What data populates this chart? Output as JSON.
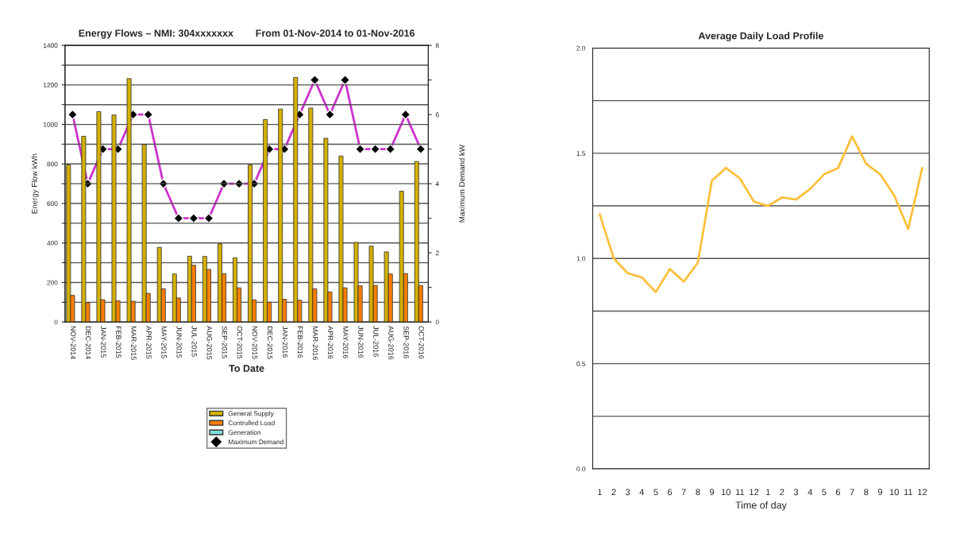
{
  "chart_data": [
    {
      "type": "bar",
      "title": "Energy Flows – NMI: 304xxxxxxx        From 01-Nov-2014 to 01-Nov-2016",
      "xlabel": "To Date",
      "ylabel": "Energy Flow kWh",
      "y2label": "Maximum Demand kW",
      "categories": [
        "NOV-2014",
        "DEC-2014",
        "JAN-2015",
        "FEB-2015",
        "MAR-2015",
        "APR-2015",
        "MAY-2015",
        "JUN-2015",
        "JUL-2015",
        "AUG-2015",
        "SEP-2015",
        "OCT-2015",
        "NOV-2015",
        "DEC-2015",
        "JAN-2016",
        "FEB-2016",
        "MAR-2016",
        "APR-2016",
        "MAY-2016",
        "JUN-2016",
        "JUL-2016",
        "AUG-2016",
        "SEP-2016",
        "OCT-2016"
      ],
      "series": [
        {
          "name": "General Supply",
          "color": "#d4b000",
          "values": [
            795,
            940,
            1065,
            1048,
            1232,
            898,
            378,
            243,
            333,
            332,
            396,
            325,
            795,
            1025,
            1078,
            1238,
            1083,
            930,
            840,
            403,
            384,
            355,
            662,
            812
          ]
        },
        {
          "name": "Controlled Load",
          "color": "#ff7f00",
          "values": [
            135,
            98,
            113,
            107,
            105,
            145,
            168,
            122,
            287,
            266,
            244,
            173,
            112,
            100,
            115,
            110,
            168,
            152,
            173,
            183,
            185,
            243,
            245,
            185
          ]
        },
        {
          "name": "Generation",
          "color": "#7fdfdf",
          "values": [
            null,
            null,
            null,
            null,
            null,
            null,
            null,
            null,
            null,
            null,
            null,
            null,
            null,
            null,
            null,
            null,
            null,
            null,
            null,
            null,
            null,
            null,
            null,
            null
          ]
        },
        {
          "name": "Maximum Demand",
          "type": "line",
          "axis": "y2",
          "color": "#cc33cc",
          "marker": "diamond",
          "values": [
            6,
            4,
            5,
            5,
            6,
            6,
            4,
            3,
            3,
            3,
            4,
            4,
            4,
            5,
            5,
            6,
            7,
            6,
            7,
            5,
            5,
            5,
            6,
            5
          ]
        }
      ],
      "ylim": [
        0,
        1400
      ],
      "yticks": [
        0,
        {
          "value": 100,
          "label": null
        },
        200,
        {
          "value": 300,
          "label": null
        },
        400,
        {
          "value": 500,
          "label": null
        },
        600,
        {
          "value": 700,
          "label": null
        },
        800,
        {
          "value": 900,
          "label": null
        },
        1000,
        {
          "value": 1100,
          "label": null
        },
        1200,
        {
          "value": 1300,
          "label": null
        },
        1400
      ],
      "y2lim": [
        0,
        8
      ],
      "y2ticks": [
        0,
        {
          "value": 1,
          "label": null
        },
        2,
        {
          "value": 3,
          "label": null
        },
        4,
        {
          "value": 5,
          "label": null
        },
        6,
        {
          "value": 7,
          "label": null
        },
        8
      ],
      "grid": "y",
      "legend": "bottom"
    },
    {
      "type": "line",
      "title": "Average Daily Load Profile",
      "xlabel": "Time of day",
      "categories": [
        "1",
        "2",
        "3",
        "4",
        "5",
        "6",
        "7",
        "8",
        "9",
        "10",
        "11",
        "12",
        "1",
        "2",
        "3",
        "4",
        "5",
        "6",
        "7",
        "8",
        "9",
        "10",
        "11",
        "12"
      ],
      "series": [
        {
          "color": "#fbbf3a",
          "values": [
            1.21,
            1.0,
            0.93,
            0.91,
            0.84,
            0.95,
            0.89,
            0.98,
            1.37,
            1.43,
            1.38,
            1.27,
            1.25,
            1.29,
            1.28,
            1.33,
            1.4,
            1.43,
            1.58,
            1.45,
            1.4,
            1.3,
            1.14,
            1.43
          ]
        }
      ],
      "ylim": [
        0,
        2
      ],
      "yticks": [
        {
          "value": 0,
          "label": "0.0"
        },
        {
          "value": 0.25,
          "label": null
        },
        0.5,
        {
          "value": 0.75,
          "label": null
        },
        {
          "value": 1,
          "label": "1.0"
        },
        {
          "value": 1.25,
          "label": null
        },
        1.5,
        {
          "value": 1.75,
          "label": null
        },
        {
          "value": 2,
          "label": "2.0"
        }
      ],
      "grid": "y"
    }
  ]
}
